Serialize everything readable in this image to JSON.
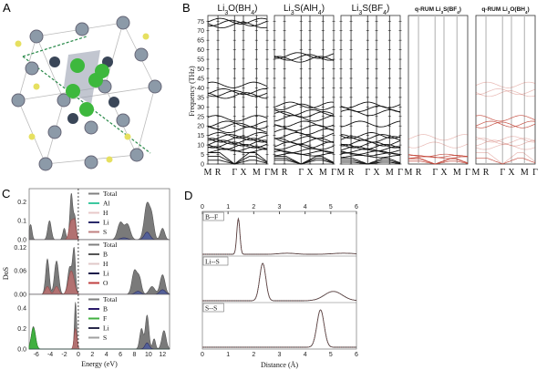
{
  "panels": {
    "a": "A",
    "b": "B",
    "c": "C",
    "d": "D"
  },
  "chart_data": [
    {
      "type": "diagram",
      "panel": "A",
      "description_label": "crystal structure"
    },
    {
      "type": "line",
      "panel": "B",
      "ylabel": "Frequency (THz)",
      "ylim": [
        0,
        78
      ],
      "yticks": [
        0,
        5,
        10,
        15,
        20,
        25,
        30,
        35,
        40,
        45,
        50,
        55,
        60,
        65,
        70,
        75
      ],
      "kpoints": [
        "M",
        "R",
        "Γ",
        "X",
        "M",
        "Γ"
      ],
      "subplots": [
        {
          "title": "Li3O(BH4)",
          "title_main": "Li",
          "sub1": "3",
          "mid": "O(BH",
          "sub2": "4",
          "end": ")",
          "color": "#111",
          "levels": [
            2,
            4,
            6,
            7,
            8,
            9,
            10,
            11,
            12,
            13,
            14,
            15,
            18,
            20,
            21,
            24,
            36,
            37,
            38,
            41.5,
            73,
            74,
            75
          ]
        },
        {
          "title": "Li3S(AlH4)",
          "title_main": "Li",
          "sub1": "3",
          "mid": "S(AlH",
          "sub2": "4",
          "end": ")",
          "color": "#111",
          "levels": [
            2,
            3,
            4,
            5,
            6,
            7,
            9,
            10,
            12,
            13,
            15,
            17,
            19,
            21,
            24,
            26,
            27,
            30,
            31,
            55,
            56,
            57
          ]
        },
        {
          "title": "Li3S(BF4)",
          "title_main": "Li",
          "sub1": "3",
          "mid": "S(BF",
          "sub2": "4",
          "end": ")",
          "color": "#111",
          "levels": [
            1,
            2,
            3,
            4,
            5,
            6,
            7,
            8,
            9,
            10,
            11,
            13,
            14,
            15,
            21,
            27,
            29,
            31
          ]
        },
        {
          "title": "q-RUM Li3S(BF4)",
          "title_main": "q-RUM Li",
          "sub1": "3",
          "mid": "S(BF",
          "sub2": "4",
          "end": ")",
          "color": "#c0392b",
          "faded": true,
          "levels": [
            1.5,
            2.5,
            3,
            3.5,
            4,
            4.5,
            10,
            14
          ]
        },
        {
          "title": "q-RUM Li3O(BH4)",
          "title_main": "q-RUM Li",
          "sub1": "3",
          "mid": "O(BH",
          "sub2": "4",
          "end": ")",
          "color": "#c0392b",
          "faded": true,
          "levels": [
            3,
            6,
            9,
            11,
            12,
            13,
            20.5,
            21,
            24,
            37,
            38,
            41.5
          ]
        }
      ]
    },
    {
      "type": "area",
      "panel": "C",
      "xlabel": "Energy (eV)",
      "ylabel": "DoS",
      "xlim": [
        -7,
        13
      ],
      "xticks": [
        -6,
        -4,
        -2,
        0,
        2,
        4,
        6,
        8,
        10,
        12
      ],
      "subplots": [
        {
          "ylim": [
            0,
            0.25
          ],
          "yticks": [
            "0.0",
            "0.1",
            "0.2"
          ],
          "legend": [
            "Total",
            "Al",
            "H",
            "Li",
            "S"
          ],
          "legend_colors": [
            "#808080",
            "#3cc8a0",
            "#e8c8c8",
            "#2a2a6a",
            "#c08080"
          ],
          "total_peaks": [
            [
              -6.8,
              0.08,
              0.2
            ],
            [
              -4.1,
              0.1,
              0.25
            ],
            [
              -2.0,
              0.06,
              0.2
            ],
            [
              -1.0,
              0.24,
              0.2
            ],
            [
              -0.5,
              0.12,
              0.2
            ],
            [
              6.0,
              0.09,
              0.4
            ],
            [
              7.0,
              0.08,
              0.4
            ],
            [
              9.8,
              0.19,
              0.4
            ],
            [
              10.5,
              0.1,
              0.3
            ],
            [
              12.0,
              0.06,
              0.3
            ]
          ],
          "partial_peaks": [
            [
              -1.0,
              0.1,
              0.3
            ],
            [
              -0.5,
              0.08,
              0.2
            ]
          ],
          "li_peaks": [
            [
              9.8,
              0.04,
              0.4
            ],
            [
              6.5,
              0.01,
              0.5
            ]
          ]
        },
        {
          "ylim": [
            0,
            0.13
          ],
          "yticks": [
            "0.00",
            "0.06",
            "0.12"
          ],
          "legend": [
            "Total",
            "B",
            "H",
            "Li",
            "O"
          ],
          "legend_colors": [
            "#808080",
            "#555555",
            "#e0c8c8",
            "#1a1a4a",
            "#c04040"
          ],
          "total_peaks": [
            [
              -4.4,
              0.09,
              0.25
            ],
            [
              -3.1,
              0.085,
              0.3
            ],
            [
              -1.2,
              0.07,
              0.3
            ],
            [
              -0.6,
              0.11,
              0.2
            ],
            [
              8.0,
              0.06,
              0.35
            ],
            [
              8.7,
              0.04,
              0.3
            ],
            [
              10.5,
              0.02,
              0.4
            ],
            [
              12.0,
              0.05,
              0.35
            ]
          ],
          "partial_peaks": [
            [
              -1.0,
              0.06,
              0.4
            ],
            [
              -4.4,
              0.02,
              0.3
            ],
            [
              -3.1,
              0.02,
              0.3
            ]
          ],
          "li_peaks": [
            [
              12.0,
              0.012,
              0.4
            ],
            [
              8.5,
              0.008,
              0.4
            ]
          ]
        },
        {
          "ylim": [
            0,
            0.5
          ],
          "yticks": [
            "0.0",
            "0.2",
            "0.4"
          ],
          "legend": [
            "Total",
            "B",
            "F",
            "Li",
            "S"
          ],
          "legend_colors": [
            "#808080",
            "#2a1a6a",
            "#40b040",
            "#2a2a4a",
            "#a0a0a0"
          ],
          "total_peaks": [
            [
              -6.4,
              0.22,
              0.3
            ],
            [
              -0.4,
              0.46,
              0.15
            ],
            [
              9.0,
              0.2,
              0.25
            ],
            [
              9.8,
              0.33,
              0.25
            ],
            [
              10.8,
              0.1,
              0.2
            ],
            [
              12.2,
              0.18,
              0.3
            ]
          ],
          "partial_peaks": [
            [
              -0.4,
              0.2,
              0.2
            ]
          ],
          "f_peaks": [
            [
              -6.4,
              0.21,
              0.3
            ]
          ],
          "li_peaks": [
            [
              9.8,
              0.06,
              0.3
            ]
          ]
        }
      ]
    },
    {
      "type": "line",
      "panel": "D",
      "xlabel": "Distance (Å)",
      "xlim": [
        0,
        6
      ],
      "xticks": [
        0,
        1,
        2,
        3,
        4,
        5,
        6
      ],
      "subplots": [
        {
          "label": "B--F",
          "peaks": [
            [
              1.4,
              1.0,
              0.06
            ],
            [
              3.3,
              0.03,
              0.3
            ],
            [
              5.5,
              0.03,
              0.4
            ]
          ]
        },
        {
          "label": "Li--S",
          "peaks": [
            [
              2.35,
              1.0,
              0.12
            ],
            [
              5.1,
              0.25,
              0.35
            ]
          ]
        },
        {
          "label": "S--S",
          "peaks": [
            [
              4.6,
              1.0,
              0.14
            ]
          ]
        }
      ]
    }
  ]
}
